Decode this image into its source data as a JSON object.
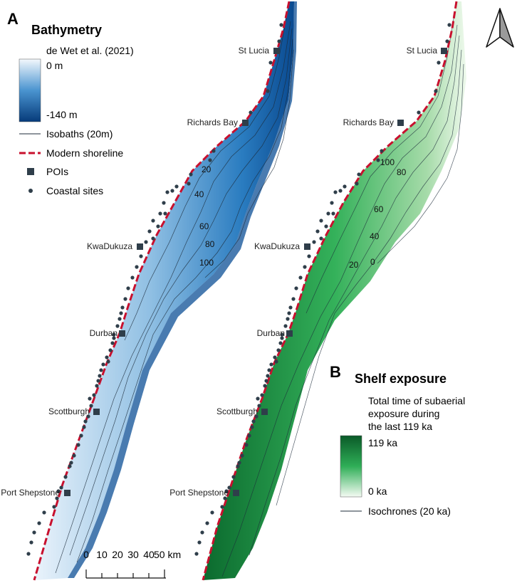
{
  "panel_a": {
    "letter": "A",
    "title": "Bathymetry",
    "source": "de Wet et al. (2021)",
    "legend": {
      "ramp_top": "0 m",
      "ramp_bottom": "-140 m",
      "isobaths": "Isobaths (20m)",
      "shoreline": "Modern shoreline",
      "pois": "POIs",
      "coastal_sites": "Coastal sites"
    },
    "ramp_colors": [
      "#f3f8fd",
      "#1f6fb8",
      "#063b7a"
    ],
    "contours": [
      "20",
      "40",
      "60",
      "80",
      "100"
    ]
  },
  "panel_b": {
    "letter": "B",
    "title": "Shelf exposure",
    "subtitle_lines": [
      "Total time of subaerial",
      "exposure during",
      "the last 119 ka"
    ],
    "legend": {
      "ramp_top": "119 ka",
      "ramp_bottom": "0 ka",
      "isochrones": "Isochrones (20 ka)"
    },
    "ramp_colors": [
      "#0a5a28",
      "#2fae57",
      "#f4fbf3"
    ],
    "contours": [
      "100",
      "80",
      "60",
      "40",
      "20",
      "0"
    ]
  },
  "pois": [
    "St Lucia",
    "Richards Bay",
    "KwaDukuza",
    "Durban",
    "Scottburgh",
    "Port Shepstone"
  ],
  "scalebar": {
    "labels": [
      "0",
      "10",
      "20",
      "30",
      "40",
      "50 km"
    ]
  },
  "colors": {
    "shoreline": "#c8102e",
    "poi": "#2f3e4a",
    "site": "#2f3e4a",
    "contour": "#1c2b3a"
  },
  "north_arrow": "north-arrow-icon"
}
